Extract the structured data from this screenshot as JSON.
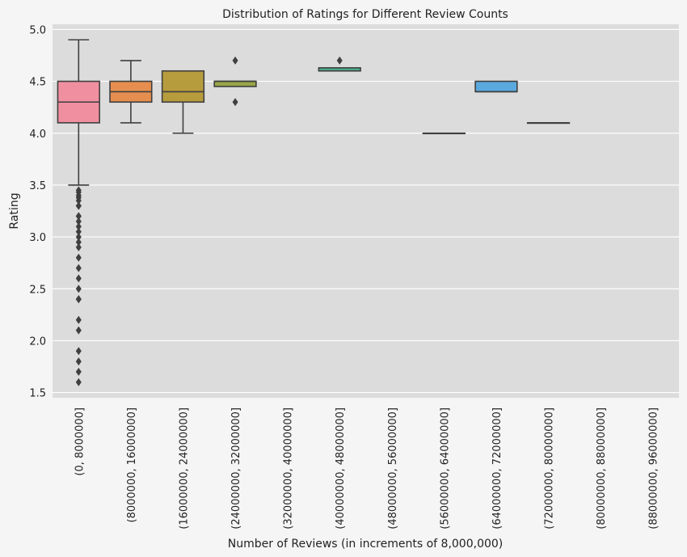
{
  "chart_data": {
    "type": "box",
    "title": "Distribution of Ratings for Different Review Counts",
    "xlabel": "Number of Reviews (in increments of 8,000,000)",
    "ylabel": "Rating",
    "ylim": [
      1.45,
      5.05
    ],
    "yticks": [
      1.5,
      2.0,
      2.5,
      3.0,
      3.5,
      4.0,
      4.5,
      5.0
    ],
    "grid": true,
    "legend": "none",
    "background": "#dcdcdc",
    "categories": [
      "(0, 8000000]",
      "(8000000, 16000000]",
      "(16000000, 24000000]",
      "(24000000, 32000000]",
      "(32000000, 40000000]",
      "(40000000, 48000000]",
      "(48000000, 56000000]",
      "(56000000, 64000000]",
      "(64000000, 72000000]",
      "(72000000, 80000000]",
      "(80000000, 88000000]",
      "(88000000, 96000000]"
    ],
    "boxes": [
      {
        "category": "(0, 8000000]",
        "color": "#f08fa0",
        "q1": 4.1,
        "median": 4.3,
        "q3": 4.5,
        "whisker_low": 3.5,
        "whisker_high": 4.9,
        "outliers": [
          3.45,
          3.43,
          3.4,
          3.38,
          3.35,
          3.3,
          3.3,
          3.2,
          3.2,
          3.15,
          3.1,
          3.05,
          3.0,
          2.95,
          2.9,
          2.8,
          2.7,
          2.6,
          2.5,
          2.4,
          2.4,
          2.2,
          2.1,
          1.9,
          1.8,
          1.7,
          1.6
        ]
      },
      {
        "category": "(8000000, 16000000]",
        "color": "#e58e4f",
        "q1": 4.3,
        "median": 4.4,
        "q3": 4.5,
        "whisker_low": 4.1,
        "whisker_high": 4.7,
        "outliers": []
      },
      {
        "category": "(16000000, 24000000]",
        "color": "#b79c3e",
        "q1": 4.3,
        "median": 4.4,
        "q3": 4.6,
        "whisker_low": 4.0,
        "whisker_high": 4.6,
        "outliers": []
      },
      {
        "category": "(24000000, 32000000]",
        "color": "#9aa548",
        "q1": 4.45,
        "median": 4.5,
        "q3": 4.5,
        "whisker_low": 4.45,
        "whisker_high": 4.5,
        "outliers": [
          4.7,
          4.3
        ]
      },
      {
        "category": "(32000000, 40000000]",
        "color": null
      },
      {
        "category": "(40000000, 48000000]",
        "color": "#4aab8a",
        "q1": 4.6,
        "median": 4.6,
        "q3": 4.63,
        "whisker_low": 4.6,
        "whisker_high": 4.63,
        "outliers": [
          4.7
        ]
      },
      {
        "category": "(48000000, 56000000]",
        "color": null
      },
      {
        "category": "(56000000, 64000000]",
        "color": "#4aa8a2",
        "q1": 4.0,
        "median": 4.0,
        "q3": 4.0,
        "whisker_low": 4.0,
        "whisker_high": 4.0,
        "outliers": []
      },
      {
        "category": "(64000000, 72000000]",
        "color": "#5aa9de",
        "q1": 4.4,
        "median": 4.4,
        "q3": 4.5,
        "whisker_low": 4.4,
        "whisker_high": 4.5,
        "outliers": []
      },
      {
        "category": "(72000000, 80000000]",
        "color": "#a79ad8",
        "q1": 4.1,
        "median": 4.1,
        "q3": 4.1,
        "whisker_low": 4.1,
        "whisker_high": 4.1,
        "outliers": []
      },
      {
        "category": "(80000000, 88000000]",
        "color": null
      },
      {
        "category": "(88000000, 96000000]",
        "color": null
      }
    ]
  }
}
